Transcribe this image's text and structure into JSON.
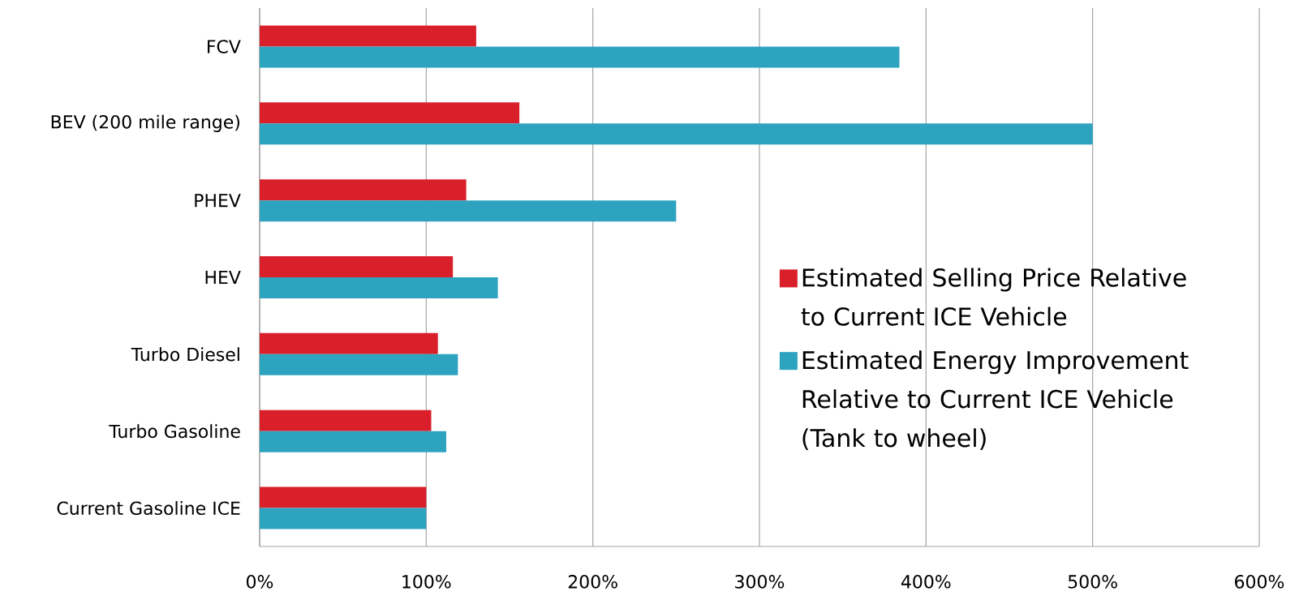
{
  "chart_data": {
    "type": "bar",
    "orientation": "horizontal",
    "categories": [
      "FCV",
      "BEV (200 mile range)",
      "PHEV",
      "HEV",
      "Turbo Diesel",
      "Turbo Gasoline",
      "Current Gasoline ICE"
    ],
    "series": [
      {
        "name": "Estimated Selling Price Relative to Current ICE Vehicle",
        "color": "#d9202a",
        "values": [
          130,
          156,
          124,
          116,
          107,
          103,
          100
        ]
      },
      {
        "name": "Estimated Energy Improvement Relative to Current ICE Vehicle (Tank to wheel)",
        "color": "#2ea3c0",
        "values": [
          384,
          500,
          250,
          143,
          119,
          112,
          100
        ]
      }
    ],
    "xlim": [
      0,
      600
    ],
    "xticks": [
      {
        "value": 0,
        "label": "0%"
      },
      {
        "value": 100,
        "label": "100%"
      },
      {
        "value": 200,
        "label": "200%"
      },
      {
        "value": 300,
        "label": "300%"
      },
      {
        "value": 400,
        "label": "400%"
      },
      {
        "value": 500,
        "label": "500%"
      },
      {
        "value": 600,
        "label": "600%"
      }
    ],
    "grid": "x",
    "legend": "right"
  }
}
